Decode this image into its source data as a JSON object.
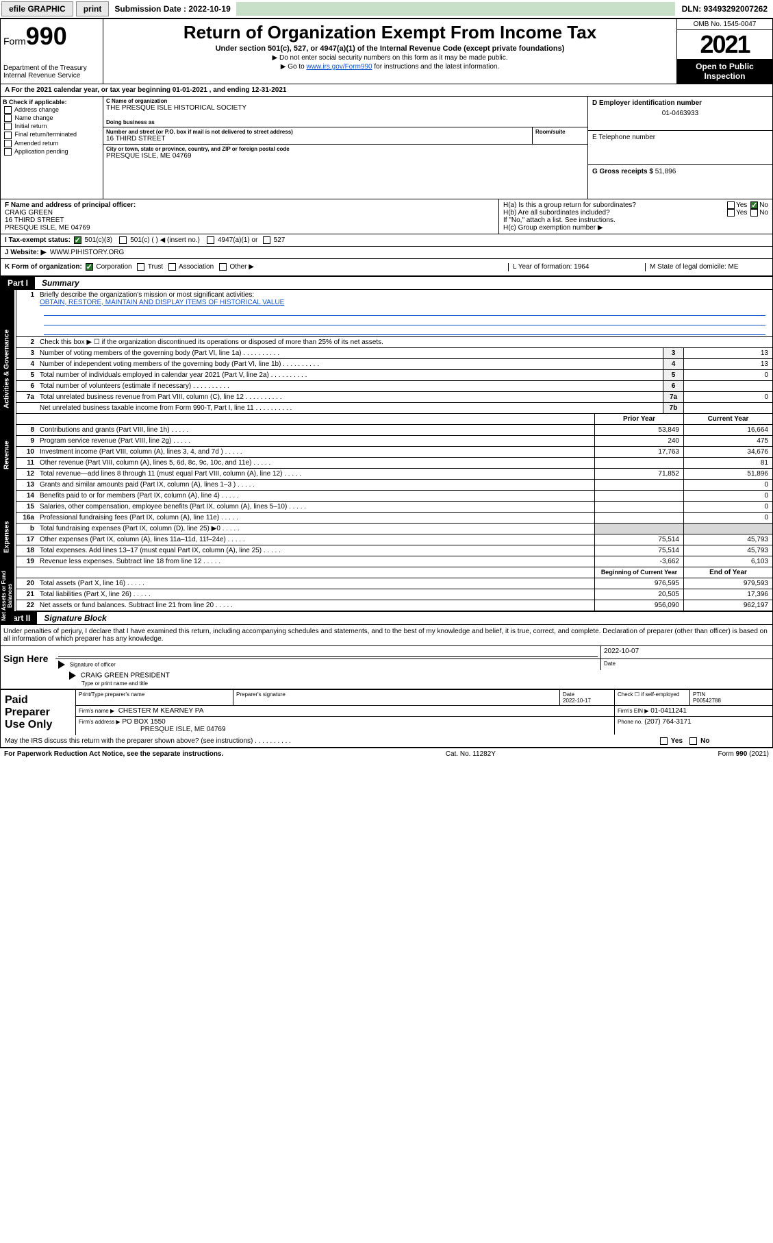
{
  "toolbar": {
    "efile": "efile GRAPHIC",
    "print": "print",
    "sub_label": "Submission Date : 2022-10-19",
    "dln": "DLN: 93493292007262"
  },
  "header": {
    "form_prefix": "Form",
    "form_number": "990",
    "dept": "Department of the Treasury",
    "irs": "Internal Revenue Service",
    "title": "Return of Organization Exempt From Income Tax",
    "subtitle": "Under section 501(c), 527, or 4947(a)(1) of the Internal Revenue Code (except private foundations)",
    "instruct1": "▶ Do not enter social security numbers on this form as it may be made public.",
    "instruct2_pre": "▶ Go to ",
    "instruct2_link": "www.irs.gov/Form990",
    "instruct2_post": " for instructions and the latest information.",
    "omb": "OMB No. 1545-0047",
    "year": "2021",
    "open": "Open to Public Inspection"
  },
  "line_a": "A For the 2021 calendar year, or tax year beginning 01-01-2021   , and ending 12-31-2021",
  "col_b": {
    "hdr": "B Check if applicable:",
    "opts": [
      "Address change",
      "Name change",
      "Initial return",
      "Final return/terminated",
      "Amended return",
      "Application pending"
    ]
  },
  "entity": {
    "c_lbl": "C Name of organization",
    "c_name": "THE PRESQUE ISLE HISTORICAL SOCIETY",
    "dba_lbl": "Doing business as",
    "addr_lbl": "Number and street (or P.O. box if mail is not delivered to street address)",
    "room_lbl": "Room/suite",
    "addr": "16 THIRD STREET",
    "city_lbl": "City or town, state or province, country, and ZIP or foreign postal code",
    "city": "PRESQUE ISLE, ME  04769",
    "d_lbl": "D Employer identification number",
    "d_val": "01-0463933",
    "e_lbl": "E Telephone number",
    "g_lbl": "G Gross receipts $",
    "g_val": "51,896"
  },
  "officer": {
    "f_lbl": "F Name and address of principal officer:",
    "name": "CRAIG GREEN",
    "addr1": "16 THIRD STREET",
    "addr2": "PRESQUE ISLE, ME  04769"
  },
  "h": {
    "a": "H(a)  Is this a group return for subordinates?",
    "b": "H(b)  Are all subordinates included?",
    "note": "If \"No,\" attach a list. See instructions.",
    "c": "H(c)  Group exemption number ▶",
    "yes": "Yes",
    "no": "No"
  },
  "status": {
    "i": "I   Tax-exempt status:",
    "o1": "501(c)(3)",
    "o2": "501(c) (  ) ◀ (insert no.)",
    "o3": "4947(a)(1) or",
    "o4": "527",
    "j": "J   Website: ▶",
    "j_val": "WWW.PIHISTORY.ORG"
  },
  "kl": {
    "k": "K Form of organization:",
    "opts": [
      "Corporation",
      "Trust",
      "Association",
      "Other ▶"
    ],
    "l": "L Year of formation: 1964",
    "m": "M State of legal domicile: ME"
  },
  "part1": {
    "num": "Part I",
    "title": "Summary",
    "q1": "Briefly describe the organization's mission or most significant activities:",
    "mission": "OBTAIN, RESTORE, MAINTAIN AND DISPLAY ITEMS OF HISTORICAL VALUE",
    "q2": "Check this box ▶ ☐  if the organization discontinued its operations or disposed of more than 25% of its net assets.",
    "lines_gov": [
      {
        "n": "3",
        "t": "Number of voting members of the governing body (Part VI, line 1a)",
        "box": "3",
        "v": "13"
      },
      {
        "n": "4",
        "t": "Number of independent voting members of the governing body (Part VI, line 1b)",
        "box": "4",
        "v": "13"
      },
      {
        "n": "5",
        "t": "Total number of individuals employed in calendar year 2021 (Part V, line 2a)",
        "box": "5",
        "v": "0"
      },
      {
        "n": "6",
        "t": "Total number of volunteers (estimate if necessary)",
        "box": "6",
        "v": ""
      },
      {
        "n": "7a",
        "t": "Total unrelated business revenue from Part VIII, column (C), line 12",
        "box": "7a",
        "v": "0"
      },
      {
        "n": "",
        "t": "Net unrelated business taxable income from Form 990-T, Part I, line 11",
        "box": "7b",
        "v": ""
      }
    ],
    "col_prior": "Prior Year",
    "col_curr": "Current Year",
    "col_beg": "Beginning of Current Year",
    "col_end": "End of Year",
    "revenue": [
      {
        "n": "8",
        "t": "Contributions and grants (Part VIII, line 1h)",
        "p": "53,849",
        "c": "16,664"
      },
      {
        "n": "9",
        "t": "Program service revenue (Part VIII, line 2g)",
        "p": "240",
        "c": "475"
      },
      {
        "n": "10",
        "t": "Investment income (Part VIII, column (A), lines 3, 4, and 7d )",
        "p": "17,763",
        "c": "34,676"
      },
      {
        "n": "11",
        "t": "Other revenue (Part VIII, column (A), lines 5, 6d, 8c, 9c, 10c, and 11e)",
        "p": "",
        "c": "81"
      },
      {
        "n": "12",
        "t": "Total revenue—add lines 8 through 11 (must equal Part VIII, column (A), line 12)",
        "p": "71,852",
        "c": "51,896"
      }
    ],
    "expenses": [
      {
        "n": "13",
        "t": "Grants and similar amounts paid (Part IX, column (A), lines 1–3 )",
        "p": "",
        "c": "0"
      },
      {
        "n": "14",
        "t": "Benefits paid to or for members (Part IX, column (A), line 4)",
        "p": "",
        "c": "0"
      },
      {
        "n": "15",
        "t": "Salaries, other compensation, employee benefits (Part IX, column (A), lines 5–10)",
        "p": "",
        "c": "0"
      },
      {
        "n": "16a",
        "t": "Professional fundraising fees (Part IX, column (A), line 11e)",
        "p": "",
        "c": "0"
      },
      {
        "n": "b",
        "t": "Total fundraising expenses (Part IX, column (D), line 25) ▶0",
        "p": "shade",
        "c": "shade"
      },
      {
        "n": "17",
        "t": "Other expenses (Part IX, column (A), lines 11a–11d, 11f–24e)",
        "p": "75,514",
        "c": "45,793"
      },
      {
        "n": "18",
        "t": "Total expenses. Add lines 13–17 (must equal Part IX, column (A), line 25)",
        "p": "75,514",
        "c": "45,793"
      },
      {
        "n": "19",
        "t": "Revenue less expenses. Subtract line 18 from line 12",
        "p": "-3,662",
        "c": "6,103"
      }
    ],
    "netassets": [
      {
        "n": "20",
        "t": "Total assets (Part X, line 16)",
        "p": "976,595",
        "c": "979,593"
      },
      {
        "n": "21",
        "t": "Total liabilities (Part X, line 26)",
        "p": "20,505",
        "c": "17,396"
      },
      {
        "n": "22",
        "t": "Net assets or fund balances. Subtract line 21 from line 20",
        "p": "956,090",
        "c": "962,197"
      }
    ],
    "tabs": {
      "gov": "Activities & Governance",
      "rev": "Revenue",
      "exp": "Expenses",
      "net": "Net Assets or Fund Balances"
    }
  },
  "part2": {
    "num": "Part II",
    "title": "Signature Block",
    "decl": "Under penalties of perjury, I declare that I have examined this return, including accompanying schedules and statements, and to the best of my knowledge and belief, it is true, correct, and complete. Declaration of preparer (other than officer) is based on all information of which preparer has any knowledge.",
    "sign_here": "Sign Here",
    "sig_of": "Signature of officer",
    "date": "Date",
    "sig_date": "2022-10-07",
    "officer": "CRAIG GREEN  PRESIDENT",
    "type_name": "Type or print name and title",
    "paid": "Paid Preparer Use Only",
    "h1": "Print/Type preparer's name",
    "h2": "Preparer's signature",
    "h3": "Date",
    "h3v": "2022-10-17",
    "h4": "Check ☐ if self-employed",
    "h5": "PTIN",
    "h5v": "P00542788",
    "firm_name_lbl": "Firm's name    ▶",
    "firm_name": "CHESTER M KEARNEY PA",
    "firm_ein_lbl": "Firm's EIN ▶",
    "firm_ein": "01-0411241",
    "firm_addr_lbl": "Firm's address ▶",
    "firm_addr1": "PO BOX 1550",
    "firm_addr2": "PRESQUE ISLE, ME  04769",
    "phone_lbl": "Phone no.",
    "phone": "(207) 764-3171",
    "may": "May the IRS discuss this return with the preparer shown above? (see instructions)"
  },
  "footer": {
    "left": "For Paperwork Reduction Act Notice, see the separate instructions.",
    "mid": "Cat. No. 11282Y",
    "right": "Form 990 (2021)"
  }
}
